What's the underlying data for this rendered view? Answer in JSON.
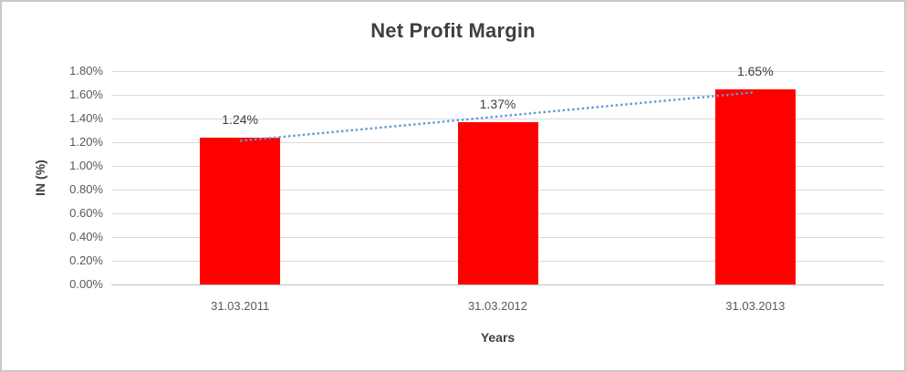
{
  "chart_data": {
    "type": "bar",
    "title": "Net Profit Margin",
    "xlabel": "Years",
    "ylabel": "IN (%)",
    "categories": [
      "31.03.2011",
      "31.03.2012",
      "31.03.2013"
    ],
    "values": [
      1.24,
      1.37,
      1.65
    ],
    "data_labels": [
      "1.24%",
      "1.37%",
      "1.65%"
    ],
    "ylim": [
      0,
      1.8
    ],
    "ytick_step": 0.2,
    "ytick_labels": [
      "0.00%",
      "0.20%",
      "0.40%",
      "0.60%",
      "0.80%",
      "1.00%",
      "1.20%",
      "1.40%",
      "1.60%",
      "1.80%"
    ],
    "grid": true,
    "legend": "none",
    "bar_color": "#ff0000",
    "trendline": {
      "type": "linear",
      "style": "dotted",
      "color": "#5b9bd5",
      "start_value": 1.212,
      "end_value": 1.622
    }
  },
  "colors": {
    "gridline": "#d9d9d9",
    "axis_line": "#bfbfbf",
    "title_text": "#3f3f3f",
    "tick_text": "#595959",
    "label_text": "#404040",
    "border": "#c8c8c8"
  }
}
